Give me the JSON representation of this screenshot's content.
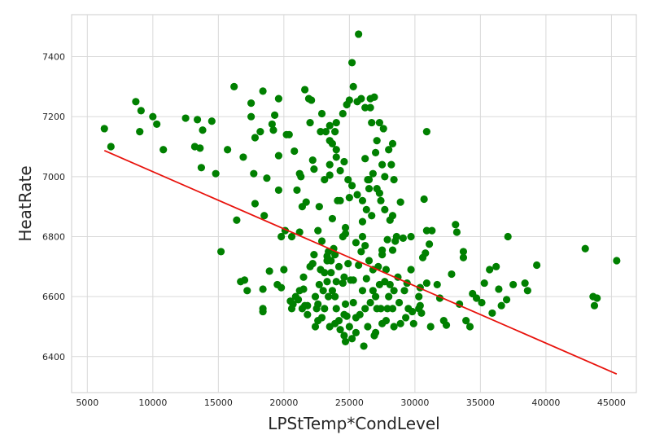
{
  "chart_data": {
    "type": "scatter",
    "title": "",
    "xlabel": "LPStTemp*CondLevel",
    "ylabel": "HeatRate",
    "xlim": [
      3800,
      46900
    ],
    "ylim": [
      6280,
      7540
    ],
    "xticks": [
      5000,
      10000,
      15000,
      20000,
      25000,
      30000,
      35000,
      40000,
      45000
    ],
    "xtick_labels": [
      "5000",
      "10000",
      "15000",
      "20000",
      "25000",
      "30000",
      "35000",
      "40000",
      "45000"
    ],
    "yticks": [
      6400,
      6600,
      6800,
      7000,
      7200,
      7400
    ],
    "ytick_labels": [
      "6400",
      "6600",
      "6800",
      "7000",
      "7200",
      "7400"
    ],
    "grid": true,
    "legend": "none",
    "colors": {
      "points": "#008000",
      "regression_line": "#e8120c",
      "grid": "#d9d9d9",
      "frame": "#cccccc"
    },
    "series": [
      {
        "kind": "points",
        "points": [
          [
            6300,
            7160
          ],
          [
            6800,
            7100
          ],
          [
            8700,
            7250
          ],
          [
            9000,
            7150
          ],
          [
            9100,
            7220
          ],
          [
            10000,
            7200
          ],
          [
            10300,
            7175
          ],
          [
            10800,
            7090
          ],
          [
            12500,
            7195
          ],
          [
            13200,
            7100
          ],
          [
            13400,
            7190
          ],
          [
            13600,
            7095
          ],
          [
            13800,
            7155
          ],
          [
            13700,
            7030
          ],
          [
            14500,
            7185
          ],
          [
            14800,
            7010
          ],
          [
            15200,
            6750
          ],
          [
            15700,
            7090
          ],
          [
            16200,
            7300
          ],
          [
            16400,
            6855
          ],
          [
            16700,
            6650
          ],
          [
            17000,
            6655
          ],
          [
            16900,
            7065
          ],
          [
            17200,
            6620
          ],
          [
            17500,
            7245
          ],
          [
            17500,
            7200
          ],
          [
            17700,
            7010
          ],
          [
            17800,
            6910
          ],
          [
            17800,
            7130
          ],
          [
            18200,
            7150
          ],
          [
            18400,
            7285
          ],
          [
            18400,
            6560
          ],
          [
            18400,
            6550
          ],
          [
            18500,
            6870
          ],
          [
            18400,
            6625
          ],
          [
            18700,
            6995
          ],
          [
            18900,
            6685
          ],
          [
            19100,
            7175
          ],
          [
            19200,
            7155
          ],
          [
            19300,
            7205
          ],
          [
            19600,
            6955
          ],
          [
            19500,
            6640
          ],
          [
            19600,
            7070
          ],
          [
            19600,
            7260
          ],
          [
            19800,
            6630
          ],
          [
            20000,
            6690
          ],
          [
            20200,
            7140
          ],
          [
            20400,
            7140
          ],
          [
            20500,
            6585
          ],
          [
            20700,
            6575
          ],
          [
            20800,
            7085
          ],
          [
            21000,
            6955
          ],
          [
            21100,
            6590
          ],
          [
            21200,
            7010
          ],
          [
            21300,
            7000
          ],
          [
            21400,
            6900
          ],
          [
            21500,
            6625
          ],
          [
            21500,
            6665
          ],
          [
            21700,
            6915
          ],
          [
            21600,
            7290
          ],
          [
            21800,
            6570
          ],
          [
            21900,
            7260
          ],
          [
            22000,
            7180
          ],
          [
            22100,
            7255
          ],
          [
            22200,
            7055
          ],
          [
            22300,
            7025
          ],
          [
            22400,
            6500
          ],
          [
            22500,
            6560
          ],
          [
            22600,
            6575
          ],
          [
            22700,
            6900
          ],
          [
            22800,
            7150
          ],
          [
            22900,
            7210
          ],
          [
            23100,
            6990
          ],
          [
            23300,
            6735
          ],
          [
            23500,
            7005
          ],
          [
            23500,
            7040
          ],
          [
            23700,
            6860
          ],
          [
            23900,
            6600
          ],
          [
            24000,
            7065
          ],
          [
            24100,
            6920
          ],
          [
            24300,
            6920
          ],
          [
            24500,
            6645
          ],
          [
            24600,
            6665
          ],
          [
            24700,
            6575
          ],
          [
            24800,
            6535
          ],
          [
            24900,
            6710
          ],
          [
            25000,
            7255
          ],
          [
            25100,
            6655
          ],
          [
            25300,
            6655
          ],
          [
            25300,
            6580
          ],
          [
            25500,
            6530
          ],
          [
            25700,
            7475
          ],
          [
            25700,
            6705
          ],
          [
            26000,
            6620
          ],
          [
            26100,
            6435
          ],
          [
            26400,
            6990
          ],
          [
            26500,
            6990
          ],
          [
            26800,
            6620
          ],
          [
            26900,
            6470
          ],
          [
            27100,
            6560
          ],
          [
            27300,
            6945
          ],
          [
            27500,
            6755
          ],
          [
            27800,
            6690
          ],
          [
            28000,
            6600
          ],
          [
            28100,
            6855
          ],
          [
            28300,
            6755
          ],
          [
            28500,
            6785
          ],
          [
            28700,
            6665
          ],
          [
            28900,
            6915
          ],
          [
            29100,
            6795
          ],
          [
            29400,
            6645
          ],
          [
            29700,
            6800
          ],
          [
            29900,
            6510
          ],
          [
            30300,
            6560
          ],
          [
            30400,
            6630
          ],
          [
            30500,
            6545
          ],
          [
            30700,
            6925
          ],
          [
            30800,
            6745
          ],
          [
            30900,
            6645
          ],
          [
            31100,
            6775
          ],
          [
            31300,
            6820
          ],
          [
            31700,
            6640
          ],
          [
            31900,
            6595
          ],
          [
            32200,
            6520
          ],
          [
            32400,
            6505
          ],
          [
            32800,
            6675
          ],
          [
            33100,
            6840
          ],
          [
            33200,
            6815
          ],
          [
            33400,
            6575
          ],
          [
            33700,
            6730
          ],
          [
            33700,
            6750
          ],
          [
            33900,
            6520
          ],
          [
            34200,
            6500
          ],
          [
            34400,
            6610
          ],
          [
            34700,
            6595
          ],
          [
            35100,
            6580
          ],
          [
            35300,
            6645
          ],
          [
            35700,
            6690
          ],
          [
            35900,
            6545
          ],
          [
            36200,
            6700
          ],
          [
            36400,
            6625
          ],
          [
            36600,
            6570
          ],
          [
            37000,
            6590
          ],
          [
            37100,
            6800
          ],
          [
            37500,
            6640
          ],
          [
            38400,
            6645
          ],
          [
            38600,
            6620
          ],
          [
            39300,
            6705
          ],
          [
            43000,
            6760
          ],
          [
            43600,
            6600
          ],
          [
            43700,
            6570
          ],
          [
            43900,
            6595
          ],
          [
            45400,
            6720
          ],
          [
            30900,
            7150
          ],
          [
            25200,
            7380
          ],
          [
            25300,
            7300
          ],
          [
            25900,
            7260
          ],
          [
            26600,
            7260
          ],
          [
            26900,
            7265
          ],
          [
            27300,
            7180
          ],
          [
            28000,
            7090
          ],
          [
            28200,
            7040
          ],
          [
            27700,
            7000
          ],
          [
            26000,
            6850
          ],
          [
            24700,
            6830
          ],
          [
            24500,
            6800
          ],
          [
            24700,
            6810
          ],
          [
            23800,
            6760
          ],
          [
            23400,
            6750
          ],
          [
            23300,
            6720
          ],
          [
            22900,
            6785
          ],
          [
            22600,
            6820
          ],
          [
            21200,
            6815
          ],
          [
            20600,
            6800
          ],
          [
            20100,
            6820
          ],
          [
            19800,
            6800
          ],
          [
            22200,
            6710
          ],
          [
            22300,
            6740
          ],
          [
            22800,
            6690
          ],
          [
            23100,
            6680
          ],
          [
            21600,
            6570
          ],
          [
            21800,
            6540
          ],
          [
            21400,
            6560
          ],
          [
            20600,
            6560
          ],
          [
            20900,
            6600
          ],
          [
            21200,
            6620
          ],
          [
            22600,
            6520
          ],
          [
            23000,
            6620
          ],
          [
            23500,
            6500
          ],
          [
            23900,
            6510
          ],
          [
            24300,
            6490
          ],
          [
            24600,
            6470
          ],
          [
            24700,
            6450
          ],
          [
            25200,
            6460
          ],
          [
            25500,
            6480
          ],
          [
            26400,
            6500
          ],
          [
            27000,
            6480
          ],
          [
            27500,
            6510
          ],
          [
            27800,
            6520
          ],
          [
            28400,
            6500
          ],
          [
            28900,
            6510
          ],
          [
            29300,
            6530
          ],
          [
            29800,
            6550
          ],
          [
            30400,
            6570
          ],
          [
            31200,
            6500
          ],
          [
            28800,
            6580
          ],
          [
            29200,
            6620
          ],
          [
            29500,
            6560
          ],
          [
            26300,
            6660
          ],
          [
            27200,
            6700
          ],
          [
            27500,
            6740
          ],
          [
            27900,
            6790
          ],
          [
            28600,
            6800
          ],
          [
            29700,
            6690
          ],
          [
            30300,
            6600
          ],
          [
            30600,
            6730
          ],
          [
            30900,
            6820
          ],
          [
            28300,
            6870
          ],
          [
            27700,
            6890
          ],
          [
            27400,
            6920
          ],
          [
            27100,
            6960
          ],
          [
            26800,
            7010
          ],
          [
            27000,
            7080
          ],
          [
            27500,
            7040
          ],
          [
            28400,
            6990
          ],
          [
            28300,
            7110
          ],
          [
            27600,
            7160
          ],
          [
            27100,
            7120
          ],
          [
            26700,
            7180
          ],
          [
            26600,
            7230
          ],
          [
            26200,
            7230
          ],
          [
            25600,
            7250
          ],
          [
            24800,
            7240
          ],
          [
            24500,
            7210
          ],
          [
            24000,
            7180
          ],
          [
            23900,
            7150
          ],
          [
            23700,
            7110
          ],
          [
            23500,
            7120
          ],
          [
            23500,
            7170
          ],
          [
            23200,
            7150
          ],
          [
            24000,
            7090
          ],
          [
            24300,
            7020
          ],
          [
            24600,
            7050
          ],
          [
            24900,
            6990
          ],
          [
            25200,
            6970
          ],
          [
            25000,
            6930
          ],
          [
            25600,
            6940
          ],
          [
            26000,
            6920
          ],
          [
            26300,
            6890
          ],
          [
            26700,
            6870
          ],
          [
            26500,
            6960
          ],
          [
            26200,
            7060
          ],
          [
            26000,
            6800
          ],
          [
            25500,
            6780
          ],
          [
            25900,
            6750
          ],
          [
            26200,
            6770
          ],
          [
            26500,
            6720
          ],
          [
            26800,
            6690
          ],
          [
            24200,
            6700
          ],
          [
            24000,
            6650
          ],
          [
            23700,
            6620
          ],
          [
            23400,
            6600
          ],
          [
            23300,
            6650
          ],
          [
            23600,
            6680
          ],
          [
            24000,
            6560
          ],
          [
            24200,
            6520
          ],
          [
            24600,
            6540
          ],
          [
            25000,
            6500
          ],
          [
            25800,
            6540
          ],
          [
            26200,
            6560
          ],
          [
            26600,
            6580
          ],
          [
            27000,
            6600
          ],
          [
            27300,
            6640
          ],
          [
            27700,
            6650
          ],
          [
            28100,
            6640
          ],
          [
            28400,
            6620
          ],
          [
            28300,
            6560
          ],
          [
            27900,
            6560
          ],
          [
            27400,
            6560
          ],
          [
            22000,
            6700
          ],
          [
            22400,
            6600
          ],
          [
            22700,
            6640
          ],
          [
            23100,
            6560
          ],
          [
            22900,
            6530
          ],
          [
            23600,
            6720
          ],
          [
            23900,
            6740
          ]
        ]
      }
    ],
    "regression_line": {
      "x": [
        6300,
        45400
      ],
      "y": [
        7087,
        6342
      ]
    }
  }
}
